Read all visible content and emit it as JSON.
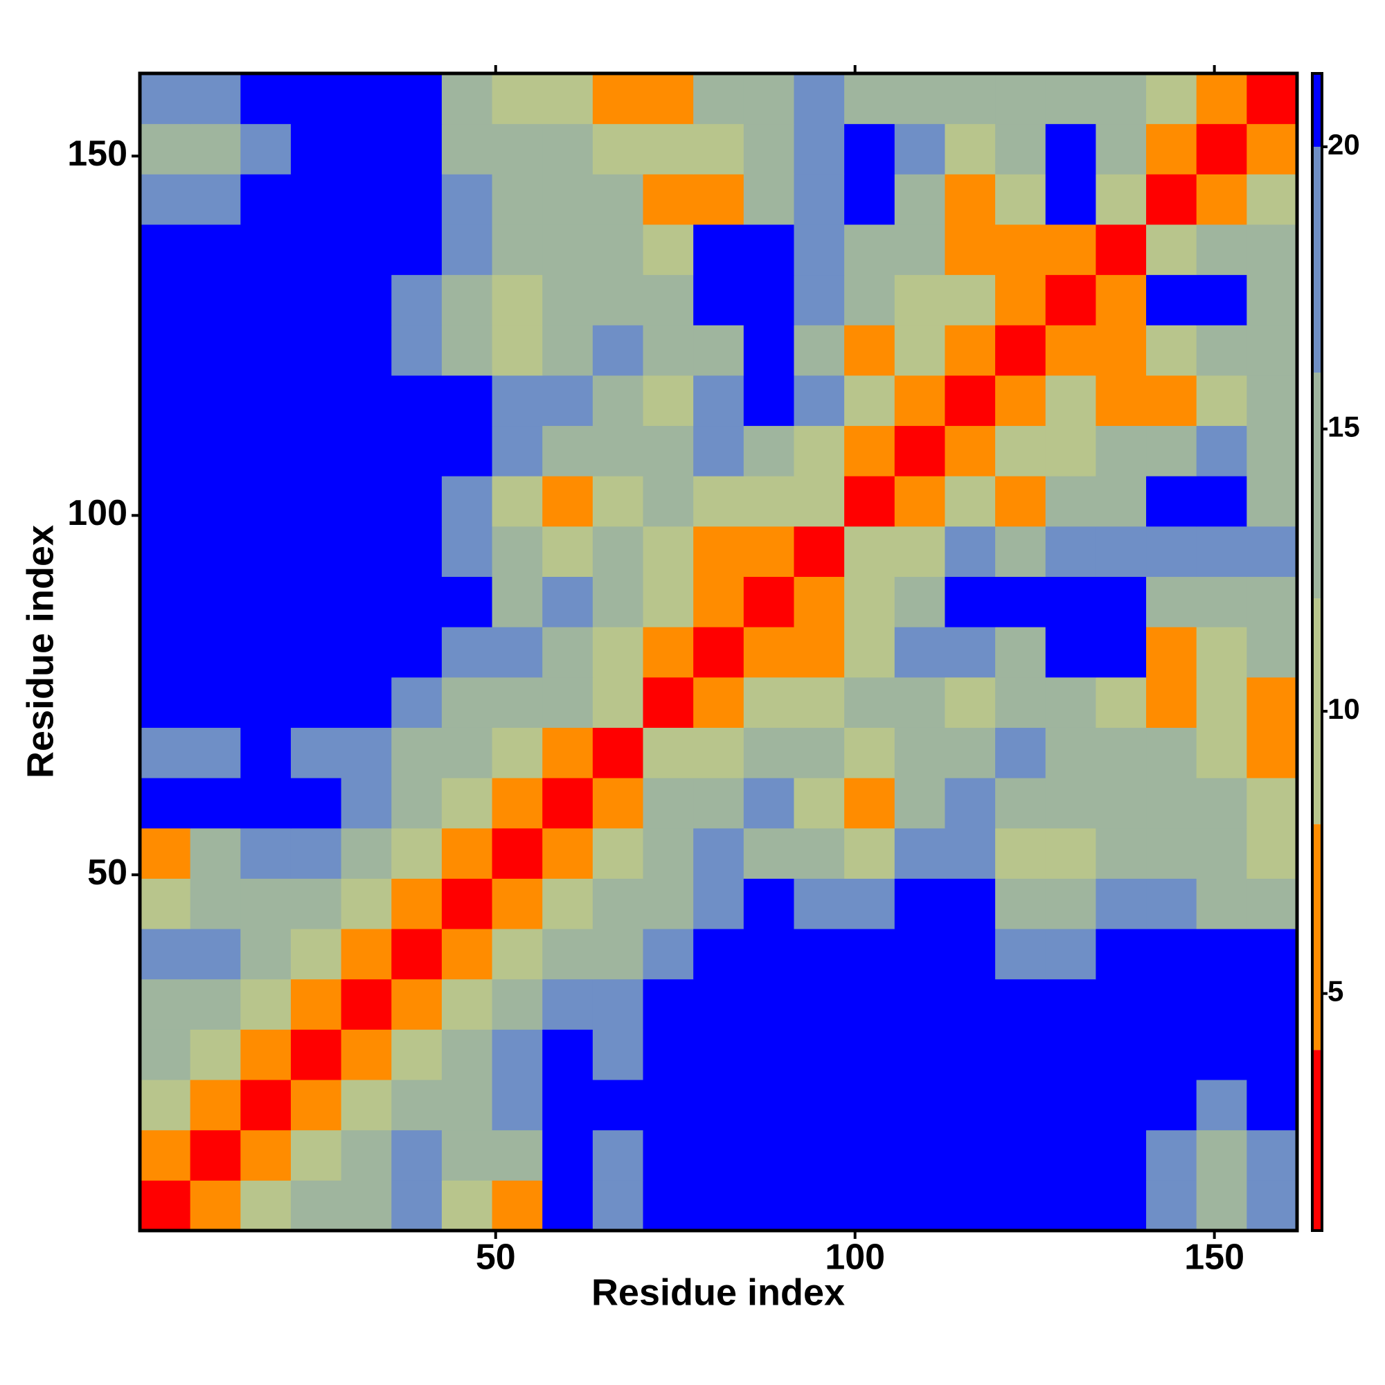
{
  "chart_data": {
    "type": "heatmap",
    "xlabel": "Residue index",
    "ylabel": "Residue index",
    "x": [
      4,
      11,
      18,
      25,
      32,
      39,
      46,
      53,
      60,
      67,
      74,
      81,
      88,
      95,
      102,
      109,
      116,
      123,
      130,
      137,
      144,
      151,
      158
    ],
    "y": [
      4,
      11,
      18,
      25,
      32,
      39,
      46,
      53,
      60,
      67,
      74,
      81,
      88,
      95,
      102,
      109,
      116,
      123,
      130,
      137,
      144,
      151,
      158
    ],
    "z": [
      [
        3,
        6,
        10,
        14,
        14,
        18,
        10,
        6,
        21,
        18,
        21,
        21,
        21,
        21,
        21,
        21,
        21,
        21,
        21,
        21,
        18,
        14,
        18
      ],
      [
        6,
        3,
        6,
        10,
        14,
        18,
        14,
        14,
        21,
        18,
        21,
        21,
        21,
        21,
        21,
        21,
        21,
        21,
        21,
        21,
        18,
        14,
        18
      ],
      [
        10,
        6,
        3,
        6,
        10,
        14,
        14,
        18,
        21,
        21,
        21,
        21,
        21,
        21,
        21,
        21,
        21,
        21,
        21,
        21,
        21,
        18,
        21
      ],
      [
        14,
        10,
        6,
        3,
        6,
        10,
        14,
        18,
        21,
        18,
        21,
        21,
        21,
        21,
        21,
        21,
        21,
        21,
        21,
        21,
        21,
        21,
        21
      ],
      [
        14,
        14,
        10,
        6,
        3,
        6,
        10,
        14,
        18,
        18,
        21,
        21,
        21,
        21,
        21,
        21,
        21,
        21,
        21,
        21,
        21,
        21,
        21
      ],
      [
        18,
        18,
        14,
        10,
        6,
        3,
        6,
        10,
        14,
        14,
        18,
        21,
        21,
        21,
        21,
        21,
        21,
        18,
        18,
        21,
        21,
        21,
        21
      ],
      [
        10,
        14,
        14,
        14,
        10,
        6,
        3,
        6,
        10,
        14,
        14,
        18,
        21,
        18,
        18,
        21,
        21,
        14,
        14,
        18,
        18,
        14,
        14
      ],
      [
        6,
        14,
        18,
        18,
        14,
        10,
        6,
        3,
        6,
        10,
        14,
        18,
        14,
        14,
        10,
        18,
        18,
        10,
        10,
        14,
        14,
        14,
        10
      ],
      [
        21,
        21,
        21,
        21,
        18,
        14,
        10,
        6,
        3,
        6,
        14,
        14,
        18,
        10,
        6,
        14,
        18,
        14,
        14,
        14,
        14,
        14,
        10
      ],
      [
        18,
        18,
        21,
        18,
        18,
        14,
        14,
        10,
        6,
        3,
        10,
        10,
        14,
        14,
        10,
        14,
        14,
        18,
        14,
        14,
        14,
        10,
        6
      ],
      [
        21,
        21,
        21,
        21,
        21,
        18,
        14,
        14,
        14,
        10,
        3,
        6,
        10,
        10,
        14,
        14,
        10,
        14,
        14,
        10,
        6,
        10,
        6
      ],
      [
        21,
        21,
        21,
        21,
        21,
        21,
        18,
        18,
        14,
        10,
        6,
        3,
        6,
        6,
        10,
        18,
        18,
        14,
        21,
        21,
        6,
        10,
        14
      ],
      [
        21,
        21,
        21,
        21,
        21,
        21,
        21,
        14,
        18,
        14,
        10,
        6,
        3,
        6,
        10,
        14,
        21,
        21,
        21,
        21,
        14,
        14,
        14
      ],
      [
        21,
        21,
        21,
        21,
        21,
        21,
        18,
        14,
        10,
        14,
        10,
        6,
        6,
        3,
        10,
        10,
        18,
        14,
        18,
        18,
        18,
        18,
        18
      ],
      [
        21,
        21,
        21,
        21,
        21,
        21,
        18,
        10,
        6,
        10,
        14,
        10,
        10,
        10,
        3,
        6,
        10,
        6,
        14,
        14,
        21,
        21,
        14
      ],
      [
        21,
        21,
        21,
        21,
        21,
        21,
        21,
        18,
        14,
        14,
        14,
        18,
        14,
        10,
        6,
        3,
        6,
        10,
        10,
        14,
        14,
        18,
        14
      ],
      [
        21,
        21,
        21,
        21,
        21,
        21,
        21,
        18,
        18,
        14,
        10,
        18,
        21,
        18,
        10,
        6,
        3,
        6,
        10,
        6,
        6,
        10,
        14
      ],
      [
        21,
        21,
        21,
        21,
        21,
        18,
        14,
        10,
        14,
        18,
        14,
        14,
        21,
        14,
        6,
        10,
        6,
        3,
        6,
        6,
        10,
        14,
        14
      ],
      [
        21,
        21,
        21,
        21,
        21,
        18,
        14,
        10,
        14,
        14,
        14,
        21,
        21,
        18,
        14,
        10,
        10,
        6,
        3,
        6,
        21,
        21,
        14
      ],
      [
        21,
        21,
        21,
        21,
        21,
        21,
        18,
        14,
        14,
        14,
        10,
        21,
        21,
        18,
        14,
        14,
        6,
        6,
        6,
        3,
        10,
        14,
        14
      ],
      [
        18,
        18,
        21,
        21,
        21,
        21,
        18,
        14,
        14,
        14,
        6,
        6,
        14,
        18,
        21,
        14,
        6,
        10,
        21,
        10,
        3,
        6,
        10
      ],
      [
        14,
        14,
        18,
        21,
        21,
        21,
        14,
        14,
        14,
        10,
        10,
        10,
        14,
        18,
        21,
        18,
        10,
        14,
        21,
        14,
        6,
        3,
        6
      ],
      [
        18,
        18,
        21,
        21,
        21,
        21,
        14,
        10,
        10,
        6,
        6,
        14,
        14,
        18,
        14,
        14,
        14,
        14,
        14,
        14,
        10,
        6,
        3
      ]
    ],
    "xlim": [
      0.5,
      161.5
    ],
    "ylim": [
      0.5,
      161.5
    ],
    "xticks": [
      50,
      100,
      150
    ],
    "yticks": [
      50,
      100,
      150
    ],
    "colorbar": {
      "lim": [
        0.8,
        21.3
      ],
      "ticks": [
        5,
        10,
        15,
        20
      ],
      "bounds": [
        0.8,
        4,
        8,
        12,
        16,
        20,
        21.3
      ],
      "colors": [
        "#ff0000",
        "#ff8c00",
        "#b8c58c",
        "#9fb59e",
        "#6f8fc6",
        "#0000ff"
      ]
    }
  }
}
